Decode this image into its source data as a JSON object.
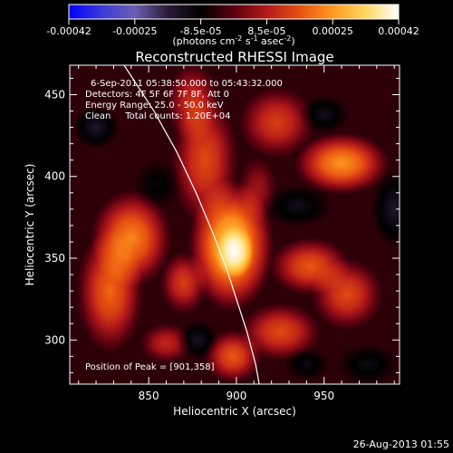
{
  "colorbar": {
    "ticks": [
      "-0.00042",
      "-0.00025",
      "-8.5e-05",
      "8.5e-05",
      "0.00025",
      "0.00042"
    ],
    "unit_main": "(photons cm",
    "unit_exp1": "-2",
    "unit_mid": " s",
    "unit_exp2": "-1",
    "unit_end": " asec",
    "unit_exp3": "-2",
    "unit_close": ")",
    "colors": [
      "#0000ff",
      "#3a3ad8",
      "#6b5fb0",
      "#2a1a3a",
      "#000000",
      "#5a0010",
      "#b41a1a",
      "#e85010",
      "#ff9a20",
      "#ffd860",
      "#ffffff"
    ]
  },
  "chart_data": {
    "type": "heatmap",
    "title": "Reconstructed RHESSI Image",
    "xlabel": "Heliocentric X (arcsec)",
    "ylabel": "Heliocentric Y (arcsec)",
    "xlim": [
      805,
      993
    ],
    "ylim": [
      273,
      468
    ],
    "xticks": [
      850,
      900,
      950
    ],
    "yticks": [
      300,
      350,
      400,
      450
    ],
    "annotations": [
      "6-Sep-2011 05:38:50.000 to 05:43:32.000",
      "Detectors: 4F 5F 6F 7F 8F, Att 0",
      "Energy Range: 25.0 - 50.0 keV",
      "Clean     Total counts: 1.20E+04"
    ],
    "peak_label": "Position of Peak = [901,358]",
    "peak": [
      901,
      358
    ],
    "limb": [
      [
        836,
        468
      ],
      [
        853,
        440
      ],
      [
        866,
        415
      ],
      [
        877,
        390
      ],
      [
        886,
        367
      ],
      [
        894,
        345
      ],
      [
        900,
        325
      ],
      [
        906,
        305
      ],
      [
        911,
        285
      ],
      [
        913,
        273
      ]
    ],
    "background": "#341c58",
    "blobs": [
      {
        "x": 897,
        "y": 358,
        "rx": 18,
        "ry": 30,
        "level": 1.0
      },
      {
        "x": 899,
        "y": 354,
        "rx": 8,
        "ry": 12,
        "level": 1.25
      },
      {
        "x": 882,
        "y": 410,
        "rx": 14,
        "ry": 30,
        "level": 0.55
      },
      {
        "x": 875,
        "y": 445,
        "rx": 11,
        "ry": 18,
        "level": 0.45
      },
      {
        "x": 840,
        "y": 362,
        "rx": 17,
        "ry": 22,
        "level": 0.75
      },
      {
        "x": 828,
        "y": 330,
        "rx": 14,
        "ry": 28,
        "level": 0.65
      },
      {
        "x": 870,
        "y": 335,
        "rx": 10,
        "ry": 14,
        "level": 0.5
      },
      {
        "x": 960,
        "y": 408,
        "rx": 20,
        "ry": 14,
        "level": 0.8
      },
      {
        "x": 923,
        "y": 433,
        "rx": 16,
        "ry": 16,
        "level": 0.5
      },
      {
        "x": 942,
        "y": 345,
        "rx": 17,
        "ry": 13,
        "level": 0.6
      },
      {
        "x": 963,
        "y": 328,
        "rx": 15,
        "ry": 16,
        "level": 0.55
      },
      {
        "x": 925,
        "y": 305,
        "rx": 17,
        "ry": 13,
        "level": 0.55
      },
      {
        "x": 898,
        "y": 290,
        "rx": 12,
        "ry": 12,
        "level": 0.6
      },
      {
        "x": 860,
        "y": 298,
        "rx": 11,
        "ry": 9,
        "level": 0.4
      },
      {
        "x": 912,
        "y": 392,
        "rx": 8,
        "ry": 15,
        "level": 0.3
      },
      {
        "x": 820,
        "y": 430,
        "rx": 10,
        "ry": 10,
        "level": -0.45
      },
      {
        "x": 855,
        "y": 395,
        "rx": 10,
        "ry": 12,
        "level": -0.25
      },
      {
        "x": 935,
        "y": 382,
        "rx": 15,
        "ry": 10,
        "level": -0.35
      },
      {
        "x": 990,
        "y": 380,
        "rx": 10,
        "ry": 18,
        "level": -0.45
      },
      {
        "x": 950,
        "y": 438,
        "rx": 11,
        "ry": 9,
        "level": -0.35
      },
      {
        "x": 878,
        "y": 300,
        "rx": 9,
        "ry": 9,
        "level": -0.4
      },
      {
        "x": 975,
        "y": 285,
        "rx": 14,
        "ry": 10,
        "level": -0.3
      },
      {
        "x": 940,
        "y": 285,
        "rx": 10,
        "ry": 8,
        "level": -0.3
      }
    ]
  },
  "footer": {
    "timestamp": "26-Aug-2013 01:55"
  }
}
